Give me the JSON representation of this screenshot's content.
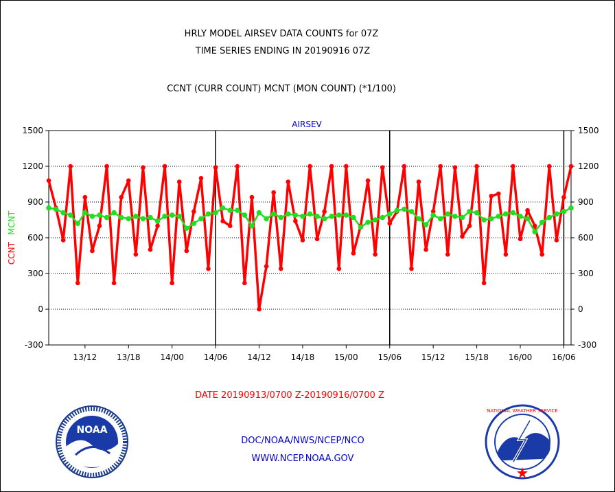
{
  "chart_data": {
    "type": "line",
    "title_lines": [
      "HRLY MODEL AIRSEV DATA COUNTS for 07Z",
      "TIME SERIES ENDING IN 20190916 07Z"
    ],
    "subtitle": "CCNT (CURR COUNT) MCNT (MON COUNT) (*1/100)",
    "panel_label": "AIRSEV",
    "ylabel_left_a": "CCNT",
    "ylabel_left_b": "MCNT",
    "xlabel": "DATE 20190913/0700 Z-20190916/0700 Z",
    "ylim": [
      -300,
      1500
    ],
    "yticks": [
      -300,
      0,
      300,
      600,
      900,
      1200,
      1500
    ],
    "xlim": [
      0,
      72
    ],
    "xticks": [
      {
        "label": "13/12",
        "x": 5
      },
      {
        "label": "13/18",
        "x": 11
      },
      {
        "label": "14/00",
        "x": 17
      },
      {
        "label": "14/06",
        "x": 23
      },
      {
        "label": "14/12",
        "x": 29
      },
      {
        "label": "14/18",
        "x": 35
      },
      {
        "label": "15/00",
        "x": 41
      },
      {
        "label": "15/06",
        "x": 47
      },
      {
        "label": "15/12",
        "x": 53
      },
      {
        "label": "15/18",
        "x": 59
      },
      {
        "label": "16/00",
        "x": 65
      },
      {
        "label": "16/06",
        "x": 71
      }
    ],
    "day_lines": [
      23,
      47,
      71
    ],
    "grid": "dotted-horizontal",
    "series": [
      {
        "name": "CCNT",
        "color": "#ff0000",
        "values": [
          1080,
          850,
          580,
          1200,
          220,
          940,
          490,
          700,
          1200,
          220,
          940,
          1080,
          460,
          1190,
          500,
          700,
          1200,
          220,
          1070,
          490,
          820,
          1100,
          340,
          1190,
          740,
          700,
          1200,
          220,
          940,
          0,
          360,
          980,
          340,
          1070,
          740,
          580,
          1200,
          590,
          820,
          1200,
          340,
          1200,
          470,
          700,
          1080,
          460,
          1190,
          720,
          820,
          1200,
          340,
          1070,
          500,
          820,
          1200,
          460,
          1190,
          610,
          700,
          1200,
          220,
          950,
          970,
          460,
          1200,
          590,
          830,
          700,
          460,
          1200,
          580,
          940,
          1200
        ]
      },
      {
        "name": "MCNT",
        "color": "#22dd22",
        "values": [
          850,
          840,
          810,
          790,
          720,
          810,
          780,
          790,
          770,
          810,
          770,
          760,
          780,
          760,
          770,
          740,
          780,
          790,
          780,
          680,
          720,
          760,
          800,
          810,
          850,
          830,
          830,
          790,
          700,
          810,
          760,
          800,
          770,
          800,
          790,
          780,
          800,
          780,
          760,
          780,
          790,
          790,
          770,
          690,
          730,
          750,
          770,
          800,
          830,
          840,
          820,
          760,
          710,
          790,
          760,
          800,
          780,
          770,
          820,
          810,
          750,
          760,
          780,
          800,
          810,
          780,
          760,
          650,
          730,
          770,
          800,
          820,
          850
        ]
      }
    ]
  },
  "footer": {
    "credit_line1": "DOC/NOAA/NWS/NCEP/NCO",
    "credit_line2": "WWW.NCEP.NOAA.GOV",
    "noaa_logo_text": "NOAA",
    "nws_seal_text": "NATIONAL WEATHER SERVICE"
  },
  "colors": {
    "title": "#000000",
    "panel_label": "#0000cc",
    "xlabel": "#ff0000",
    "credits": "#0000cc",
    "ccnt": "#ff0000",
    "mcnt": "#22dd22"
  }
}
